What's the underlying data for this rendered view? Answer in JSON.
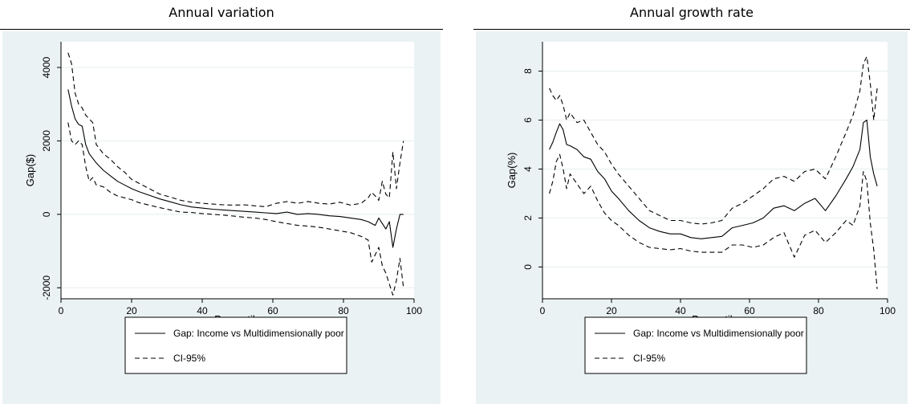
{
  "chart_data": [
    {
      "type": "line",
      "title": "Annual variation",
      "xlabel": "Percentile",
      "ylabel": "Gap($)",
      "xlim": [
        0,
        100
      ],
      "ylim": [
        -2300,
        4700
      ],
      "xticks": [
        0,
        20,
        40,
        60,
        80,
        100
      ],
      "yticks": [
        -2000,
        0,
        2000,
        4000
      ],
      "ytick_labels": [
        "-2000",
        "0",
        "2000",
        "4000"
      ],
      "grid": true,
      "legend_position": "bottom",
      "series": [
        {
          "name": "Gap: Income vs Multidimensionally poor",
          "style": "solid",
          "x": [
            2,
            3,
            4,
            5,
            6,
            7,
            8,
            10,
            12,
            14,
            16,
            18,
            20,
            22,
            25,
            28,
            31,
            34,
            37,
            40,
            43,
            46,
            49,
            52,
            55,
            58,
            61,
            64,
            67,
            70,
            73,
            76,
            79,
            82,
            85,
            87,
            89,
            90,
            91,
            92,
            93,
            94,
            95,
            96,
            97
          ],
          "y": [
            3400,
            2950,
            2600,
            2450,
            2400,
            1900,
            1650,
            1400,
            1200,
            1050,
            900,
            800,
            700,
            620,
            520,
            420,
            340,
            260,
            200,
            170,
            140,
            120,
            100,
            80,
            60,
            40,
            20,
            60,
            0,
            20,
            0,
            -40,
            -60,
            -100,
            -140,
            -200,
            -300,
            -100,
            -250,
            -400,
            -200,
            -900,
            -400,
            0,
            0
          ]
        },
        {
          "name": "CI-95%",
          "style": "dashed",
          "x": [
            2,
            3,
            4,
            5,
            6,
            7,
            8,
            9,
            10,
            12,
            14,
            16,
            18,
            20,
            22,
            25,
            28,
            31,
            34,
            37,
            40,
            43,
            46,
            49,
            52,
            55,
            58,
            61,
            64,
            67,
            70,
            73,
            76,
            79,
            82,
            85,
            87,
            88,
            89,
            90,
            91,
            92,
            93,
            94,
            95,
            96,
            97
          ],
          "y": [
            4400,
            4100,
            3300,
            3000,
            2900,
            2700,
            2600,
            2500,
            1900,
            1650,
            1500,
            1300,
            1150,
            950,
            850,
            700,
            550,
            470,
            380,
            330,
            300,
            280,
            260,
            250,
            260,
            230,
            210,
            300,
            350,
            300,
            350,
            300,
            280,
            330,
            250,
            300,
            450,
            600,
            500,
            380,
            900,
            550,
            450,
            1700,
            700,
            1400,
            2000
          ]
        },
        {
          "name": "",
          "style": "dashed",
          "x": [
            2,
            3,
            4,
            5,
            6,
            7,
            8,
            9,
            10,
            12,
            14,
            16,
            18,
            20,
            22,
            25,
            28,
            31,
            34,
            37,
            40,
            43,
            46,
            49,
            52,
            55,
            58,
            61,
            64,
            67,
            70,
            73,
            76,
            79,
            82,
            85,
            87,
            88,
            89,
            90,
            91,
            92,
            93,
            94,
            95,
            96,
            97
          ],
          "y": [
            2500,
            2000,
            1900,
            2000,
            1900,
            1300,
            900,
            1000,
            800,
            750,
            600,
            500,
            450,
            400,
            320,
            250,
            180,
            120,
            60,
            50,
            20,
            0,
            -20,
            -50,
            -80,
            -100,
            -140,
            -200,
            -250,
            -300,
            -320,
            -350,
            -400,
            -450,
            -500,
            -600,
            -700,
            -1300,
            -1100,
            -900,
            -1400,
            -1600,
            -1900,
            -2200,
            -1800,
            -1200,
            -2000
          ]
        }
      ]
    },
    {
      "type": "line",
      "title": "Annual growth rate",
      "xlabel": "Percentile",
      "ylabel": "Gap(%)",
      "xlim": [
        0,
        100
      ],
      "ylim": [
        -1.3,
        9.2
      ],
      "xticks": [
        0,
        20,
        40,
        60,
        80,
        100
      ],
      "yticks": [
        0,
        2,
        4,
        6,
        8
      ],
      "ytick_labels": [
        "0",
        "2",
        "4",
        "6",
        "8"
      ],
      "grid": true,
      "legend_position": "bottom",
      "series": [
        {
          "name": "Gap: Income vs Multidimensionally poor",
          "style": "solid",
          "x": [
            2,
            3,
            4,
            5,
            6,
            7,
            8,
            10,
            12,
            14,
            16,
            18,
            20,
            22,
            25,
            28,
            31,
            34,
            37,
            40,
            43,
            46,
            49,
            52,
            55,
            58,
            61,
            64,
            67,
            70,
            73,
            76,
            79,
            82,
            85,
            88,
            90,
            92,
            93,
            94,
            95,
            96,
            97
          ],
          "y": [
            4.8,
            5.1,
            5.5,
            5.85,
            5.6,
            5.0,
            4.95,
            4.8,
            4.5,
            4.4,
            3.9,
            3.6,
            3.1,
            2.8,
            2.3,
            1.9,
            1.6,
            1.45,
            1.35,
            1.35,
            1.2,
            1.15,
            1.2,
            1.25,
            1.6,
            1.7,
            1.8,
            2.0,
            2.4,
            2.5,
            2.3,
            2.6,
            2.8,
            2.3,
            2.9,
            3.6,
            4.1,
            4.8,
            5.9,
            6.0,
            4.5,
            3.8,
            3.3
          ]
        },
        {
          "name": "CI-95%",
          "style": "dashed",
          "x": [
            2,
            3,
            4,
            5,
            6,
            7,
            8,
            10,
            12,
            14,
            16,
            18,
            20,
            22,
            25,
            28,
            31,
            34,
            37,
            40,
            43,
            46,
            49,
            52,
            55,
            58,
            61,
            64,
            67,
            70,
            73,
            76,
            79,
            82,
            85,
            88,
            90,
            92,
            93,
            94,
            95,
            96,
            97
          ],
          "y": [
            7.3,
            7.0,
            6.8,
            7.0,
            6.6,
            6.0,
            6.3,
            5.9,
            6.0,
            5.5,
            5.0,
            4.7,
            4.2,
            3.8,
            3.3,
            2.8,
            2.3,
            2.1,
            1.9,
            1.9,
            1.8,
            1.75,
            1.8,
            1.9,
            2.4,
            2.6,
            2.9,
            3.2,
            3.6,
            3.7,
            3.5,
            3.9,
            4.0,
            3.6,
            4.5,
            5.5,
            6.2,
            7.2,
            8.3,
            8.6,
            7.5,
            6.0,
            7.3
          ]
        },
        {
          "name": "",
          "style": "dashed",
          "x": [
            2,
            3,
            4,
            5,
            6,
            7,
            8,
            10,
            12,
            14,
            16,
            18,
            20,
            22,
            25,
            28,
            31,
            34,
            37,
            40,
            43,
            46,
            49,
            52,
            55,
            58,
            61,
            64,
            67,
            70,
            73,
            76,
            79,
            82,
            85,
            88,
            90,
            92,
            93,
            94,
            95,
            96,
            97
          ],
          "y": [
            3.0,
            3.5,
            4.3,
            4.6,
            4.0,
            3.2,
            3.8,
            3.4,
            3.0,
            3.3,
            2.7,
            2.2,
            1.9,
            1.7,
            1.3,
            1.0,
            0.8,
            0.75,
            0.7,
            0.75,
            0.65,
            0.6,
            0.6,
            0.6,
            0.9,
            0.9,
            0.8,
            0.9,
            1.2,
            1.4,
            0.4,
            1.3,
            1.5,
            1.0,
            1.4,
            1.9,
            1.7,
            2.5,
            3.9,
            3.5,
            1.8,
            0.7,
            -0.9
          ]
        }
      ]
    }
  ]
}
